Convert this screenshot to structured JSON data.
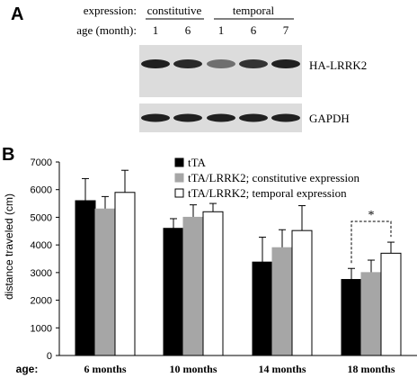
{
  "panel_a": {
    "label": "A",
    "expression_label": "expression:",
    "groups": [
      {
        "name": "constitutive",
        "ages": [
          "1",
          "6"
        ]
      },
      {
        "name": "temporal",
        "ages": [
          "1",
          "6",
          "7"
        ]
      }
    ],
    "age_label": "age (month):",
    "blots": [
      {
        "name": "HA-LRRK2",
        "band_intensity": [
          0.95,
          0.9,
          0.55,
          0.85,
          0.95
        ]
      },
      {
        "name": "GAPDH",
        "band_intensity": [
          0.95,
          0.95,
          0.95,
          0.95,
          0.95
        ]
      }
    ]
  },
  "panel_b": {
    "label": "B",
    "age_prefix": "age:",
    "significance_marker": "*"
  },
  "colors": {
    "tTA": "#000000",
    "constitutive": "#a6a6a6",
    "temporal": "#ffffff",
    "blot_background": "#dcdcdc",
    "band": "#151515"
  },
  "chart_data": {
    "type": "bar",
    "title": "",
    "xlabel": "",
    "ylabel": "distance traveled (cm)",
    "ylim": [
      0,
      7000
    ],
    "yticks": [
      "0",
      "1000",
      "2000",
      "3000",
      "4000",
      "5000",
      "6000",
      "7000"
    ],
    "categories": [
      "6 months",
      "10 months",
      "14 months",
      "18 months"
    ],
    "legend_position": "top-right",
    "series": [
      {
        "name": "tTA",
        "values": [
          5600,
          4600,
          3380,
          2750
        ],
        "errors": [
          800,
          350,
          900,
          400
        ]
      },
      {
        "name": "tTA/LRRK2; constitutive expression",
        "values": [
          5300,
          5000,
          3900,
          3000
        ],
        "errors": [
          450,
          450,
          650,
          450
        ]
      },
      {
        "name": "tTA/LRRK2; temporal expression",
        "values": [
          5900,
          5200,
          4520,
          3700
        ],
        "errors": [
          800,
          300,
          900,
          400
        ]
      }
    ]
  }
}
